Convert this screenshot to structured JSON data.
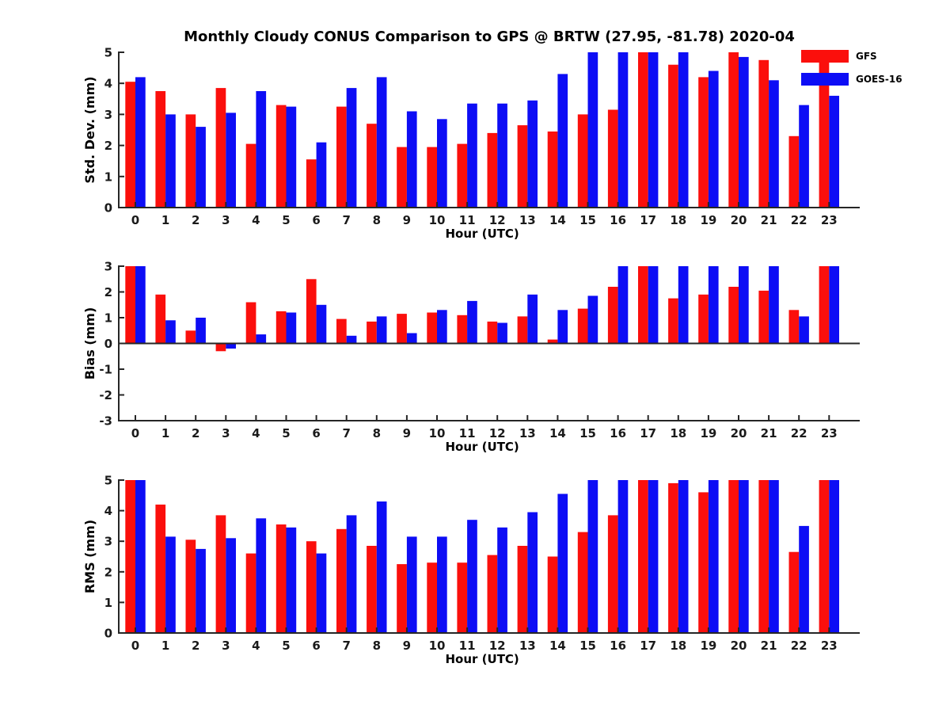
{
  "figure": {
    "title": "Monthly Cloudy CONUS Comparison to GPS @ BRTW (27.95, -81.78) 2020-04",
    "background_color": "#ffffff",
    "axis_color": "#262626",
    "tick_label_color": "#1a1a1a",
    "label_color": "#000000"
  },
  "legend": {
    "position": "top-right",
    "entries": [
      {
        "label": "GFS",
        "color": "#fb0f0c"
      },
      {
        "label": "GOES-16",
        "color": "#0d0df5"
      }
    ]
  },
  "chart_data": [
    {
      "type": "bar",
      "name": "stddev",
      "ylabel": "Std. Dev. (mm)",
      "xlabel": "Hour (UTC)",
      "ylim": [
        0,
        5
      ],
      "yticks": [
        0,
        1,
        2,
        3,
        4,
        5
      ],
      "grid": false,
      "categories": [
        "0",
        "1",
        "2",
        "3",
        "4",
        "5",
        "6",
        "7",
        "8",
        "9",
        "10",
        "11",
        "12",
        "13",
        "14",
        "15",
        "16",
        "17",
        "18",
        "19",
        "20",
        "21",
        "22",
        "23"
      ],
      "series": [
        {
          "name": "GFS",
          "color": "#fb0f0c",
          "values": [
            4.05,
            3.75,
            3.0,
            3.85,
            2.05,
            3.3,
            1.55,
            3.25,
            2.7,
            1.95,
            1.95,
            2.05,
            2.4,
            2.65,
            2.45,
            3.0,
            3.15,
            5.0,
            4.6,
            4.2,
            5.0,
            4.75,
            2.3,
            5.0
          ]
        },
        {
          "name": "GOES-16",
          "color": "#0d0df5",
          "values": [
            4.2,
            3.0,
            2.6,
            3.05,
            3.75,
            3.25,
            2.1,
            3.85,
            4.2,
            3.1,
            2.85,
            3.35,
            3.35,
            3.45,
            4.3,
            5.0,
            5.0,
            5.0,
            5.0,
            4.4,
            4.85,
            4.1,
            3.3,
            3.6
          ]
        }
      ]
    },
    {
      "type": "bar",
      "name": "bias",
      "ylabel": "Bias (mm)",
      "xlabel": "Hour (UTC)",
      "ylim": [
        -3,
        3
      ],
      "yticks": [
        -3,
        -2,
        -1,
        0,
        1,
        2,
        3
      ],
      "grid": false,
      "categories": [
        "0",
        "1",
        "2",
        "3",
        "4",
        "5",
        "6",
        "7",
        "8",
        "9",
        "10",
        "11",
        "12",
        "13",
        "14",
        "15",
        "16",
        "17",
        "18",
        "19",
        "20",
        "21",
        "22",
        "23"
      ],
      "series": [
        {
          "name": "GFS",
          "color": "#fb0f0c",
          "values": [
            3.0,
            1.9,
            0.5,
            -0.3,
            1.6,
            1.25,
            2.5,
            0.95,
            0.85,
            1.15,
            1.2,
            1.1,
            0.85,
            1.05,
            0.15,
            1.35,
            2.2,
            3.0,
            1.75,
            1.9,
            2.2,
            2.05,
            1.3,
            3.0
          ]
        },
        {
          "name": "GOES-16",
          "color": "#0d0df5",
          "values": [
            3.0,
            0.9,
            1.0,
            -0.2,
            0.35,
            1.2,
            1.5,
            0.3,
            1.05,
            0.4,
            1.3,
            1.65,
            0.8,
            1.9,
            1.3,
            1.85,
            3.0,
            3.0,
            3.0,
            3.0,
            3.0,
            3.0,
            1.05,
            3.0
          ]
        }
      ]
    },
    {
      "type": "bar",
      "name": "rms",
      "ylabel": "RMS (mm)",
      "xlabel": "Hour (UTC)",
      "ylim": [
        0,
        5
      ],
      "yticks": [
        0,
        1,
        2,
        3,
        4,
        5
      ],
      "grid": false,
      "categories": [
        "0",
        "1",
        "2",
        "3",
        "4",
        "5",
        "6",
        "7",
        "8",
        "9",
        "10",
        "11",
        "12",
        "13",
        "14",
        "15",
        "16",
        "17",
        "18",
        "19",
        "20",
        "21",
        "22",
        "23"
      ],
      "series": [
        {
          "name": "GFS",
          "color": "#fb0f0c",
          "values": [
            5.0,
            4.2,
            3.05,
            3.85,
            2.6,
            3.55,
            3.0,
            3.4,
            2.85,
            2.25,
            2.3,
            2.3,
            2.55,
            2.85,
            2.5,
            3.3,
            3.85,
            5.0,
            4.9,
            4.6,
            5.0,
            5.0,
            2.65,
            5.0
          ]
        },
        {
          "name": "GOES-16",
          "color": "#0d0df5",
          "values": [
            5.0,
            3.15,
            2.75,
            3.1,
            3.75,
            3.45,
            2.6,
            3.85,
            4.3,
            3.15,
            3.15,
            3.7,
            3.45,
            3.95,
            4.55,
            5.0,
            5.0,
            5.0,
            5.0,
            5.0,
            5.0,
            5.0,
            3.5,
            5.0
          ]
        }
      ]
    }
  ]
}
